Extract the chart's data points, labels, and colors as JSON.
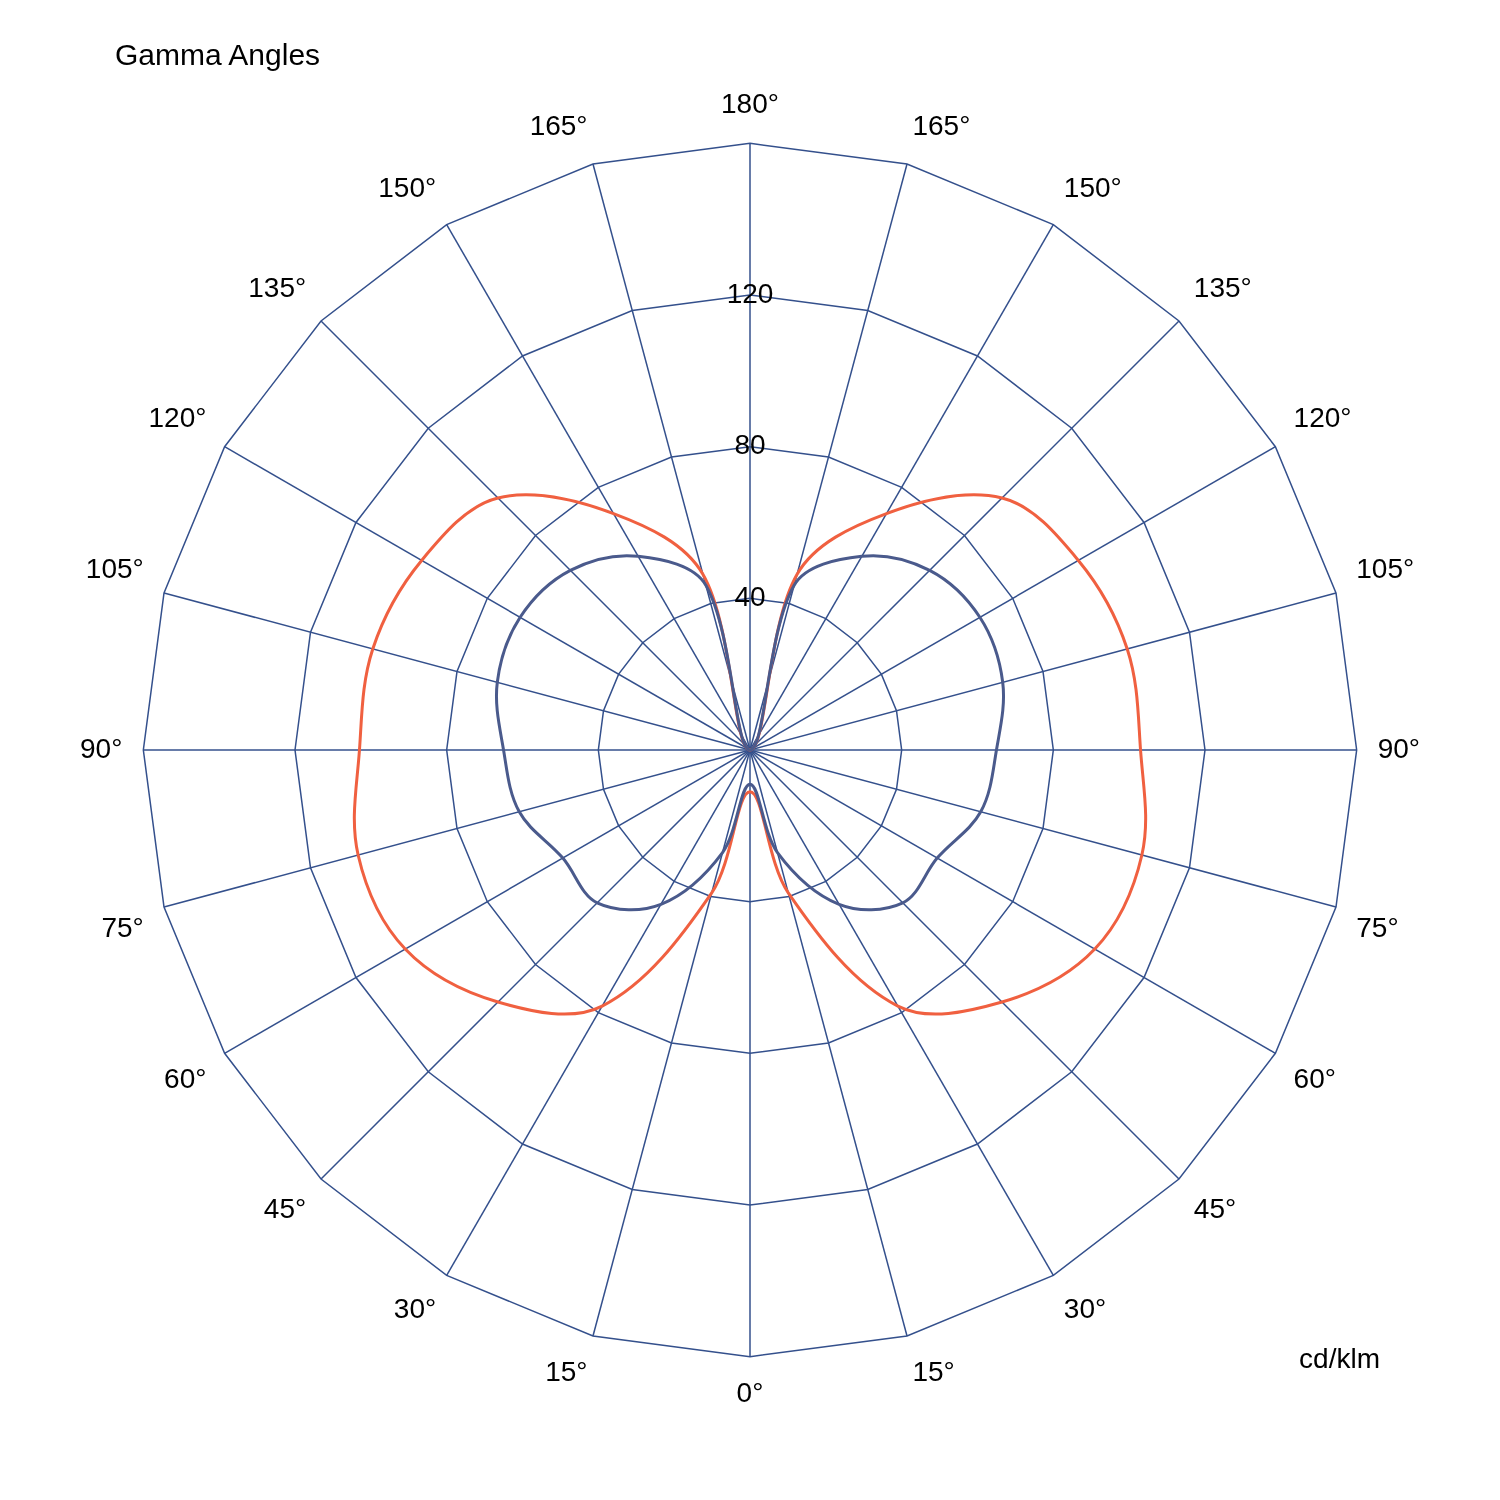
{
  "chart_data": {
    "type": "radar",
    "title": "Gamma Angles",
    "annotations": [
      "cd/klm"
    ],
    "categories": [
      "180°",
      "165°",
      "150°",
      "135°",
      "120°",
      "105°",
      "90°",
      "75°",
      "60°",
      "45°",
      "30°",
      "15°",
      "0°",
      "15°",
      "30°",
      "45°",
      "60°",
      "75°",
      "90°",
      "105°",
      "120°",
      "135°",
      "150°",
      "165°"
    ],
    "series": [
      {
        "color": "#f06040",
        "values": [
          0,
          48,
          72,
          94,
          100,
          103,
          103,
          107,
          105,
          94,
          78,
          39,
          11,
          39,
          78,
          94,
          105,
          107,
          103,
          103,
          100,
          94,
          72,
          48
        ]
      },
      {
        "color": "#4a5a8c",
        "values": [
          0,
          45,
          59,
          67,
          70,
          69,
          65,
          63,
          57,
          57,
          47,
          28,
          9,
          28,
          47,
          57,
          57,
          63,
          65,
          69,
          70,
          67,
          59,
          45
        ]
      }
    ],
    "ylim": [
      0,
      160
    ],
    "yticks": [
      40,
      80,
      120
    ],
    "grid": true,
    "legend": false,
    "marker": "none",
    "line_style": "solid"
  }
}
